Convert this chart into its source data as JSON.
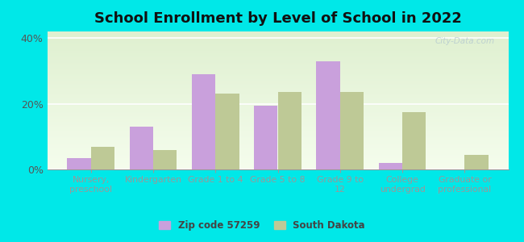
{
  "title": "School Enrollment by Level of School in 2022",
  "categories": [
    "Nursery,\npreschool",
    "Kindergarten",
    "Grade 1 to 4",
    "Grade 5 to 8",
    "Grade 9 to\n12",
    "College\nundergrad",
    "Graduate or\nprofessional"
  ],
  "zip_values": [
    3.5,
    13.0,
    29.0,
    19.5,
    33.0,
    2.0,
    0.0
  ],
  "state_values": [
    7.0,
    6.0,
    23.0,
    23.5,
    23.5,
    17.5,
    4.5
  ],
  "zip_color": "#c9a0dc",
  "state_color": "#bec996",
  "background_color": "#00e8e8",
  "plot_bg_top": "#dff0d0",
  "plot_bg_bottom": "#f5fded",
  "ylim": [
    0,
    42
  ],
  "yticks": [
    0,
    20,
    40
  ],
  "ytick_labels": [
    "0%",
    "20%",
    "40%"
  ],
  "legend_zip_label": "Zip code 57259",
  "legend_state_label": "South Dakota",
  "title_fontsize": 13,
  "bar_width": 0.38,
  "watermark": "City-Data.com"
}
